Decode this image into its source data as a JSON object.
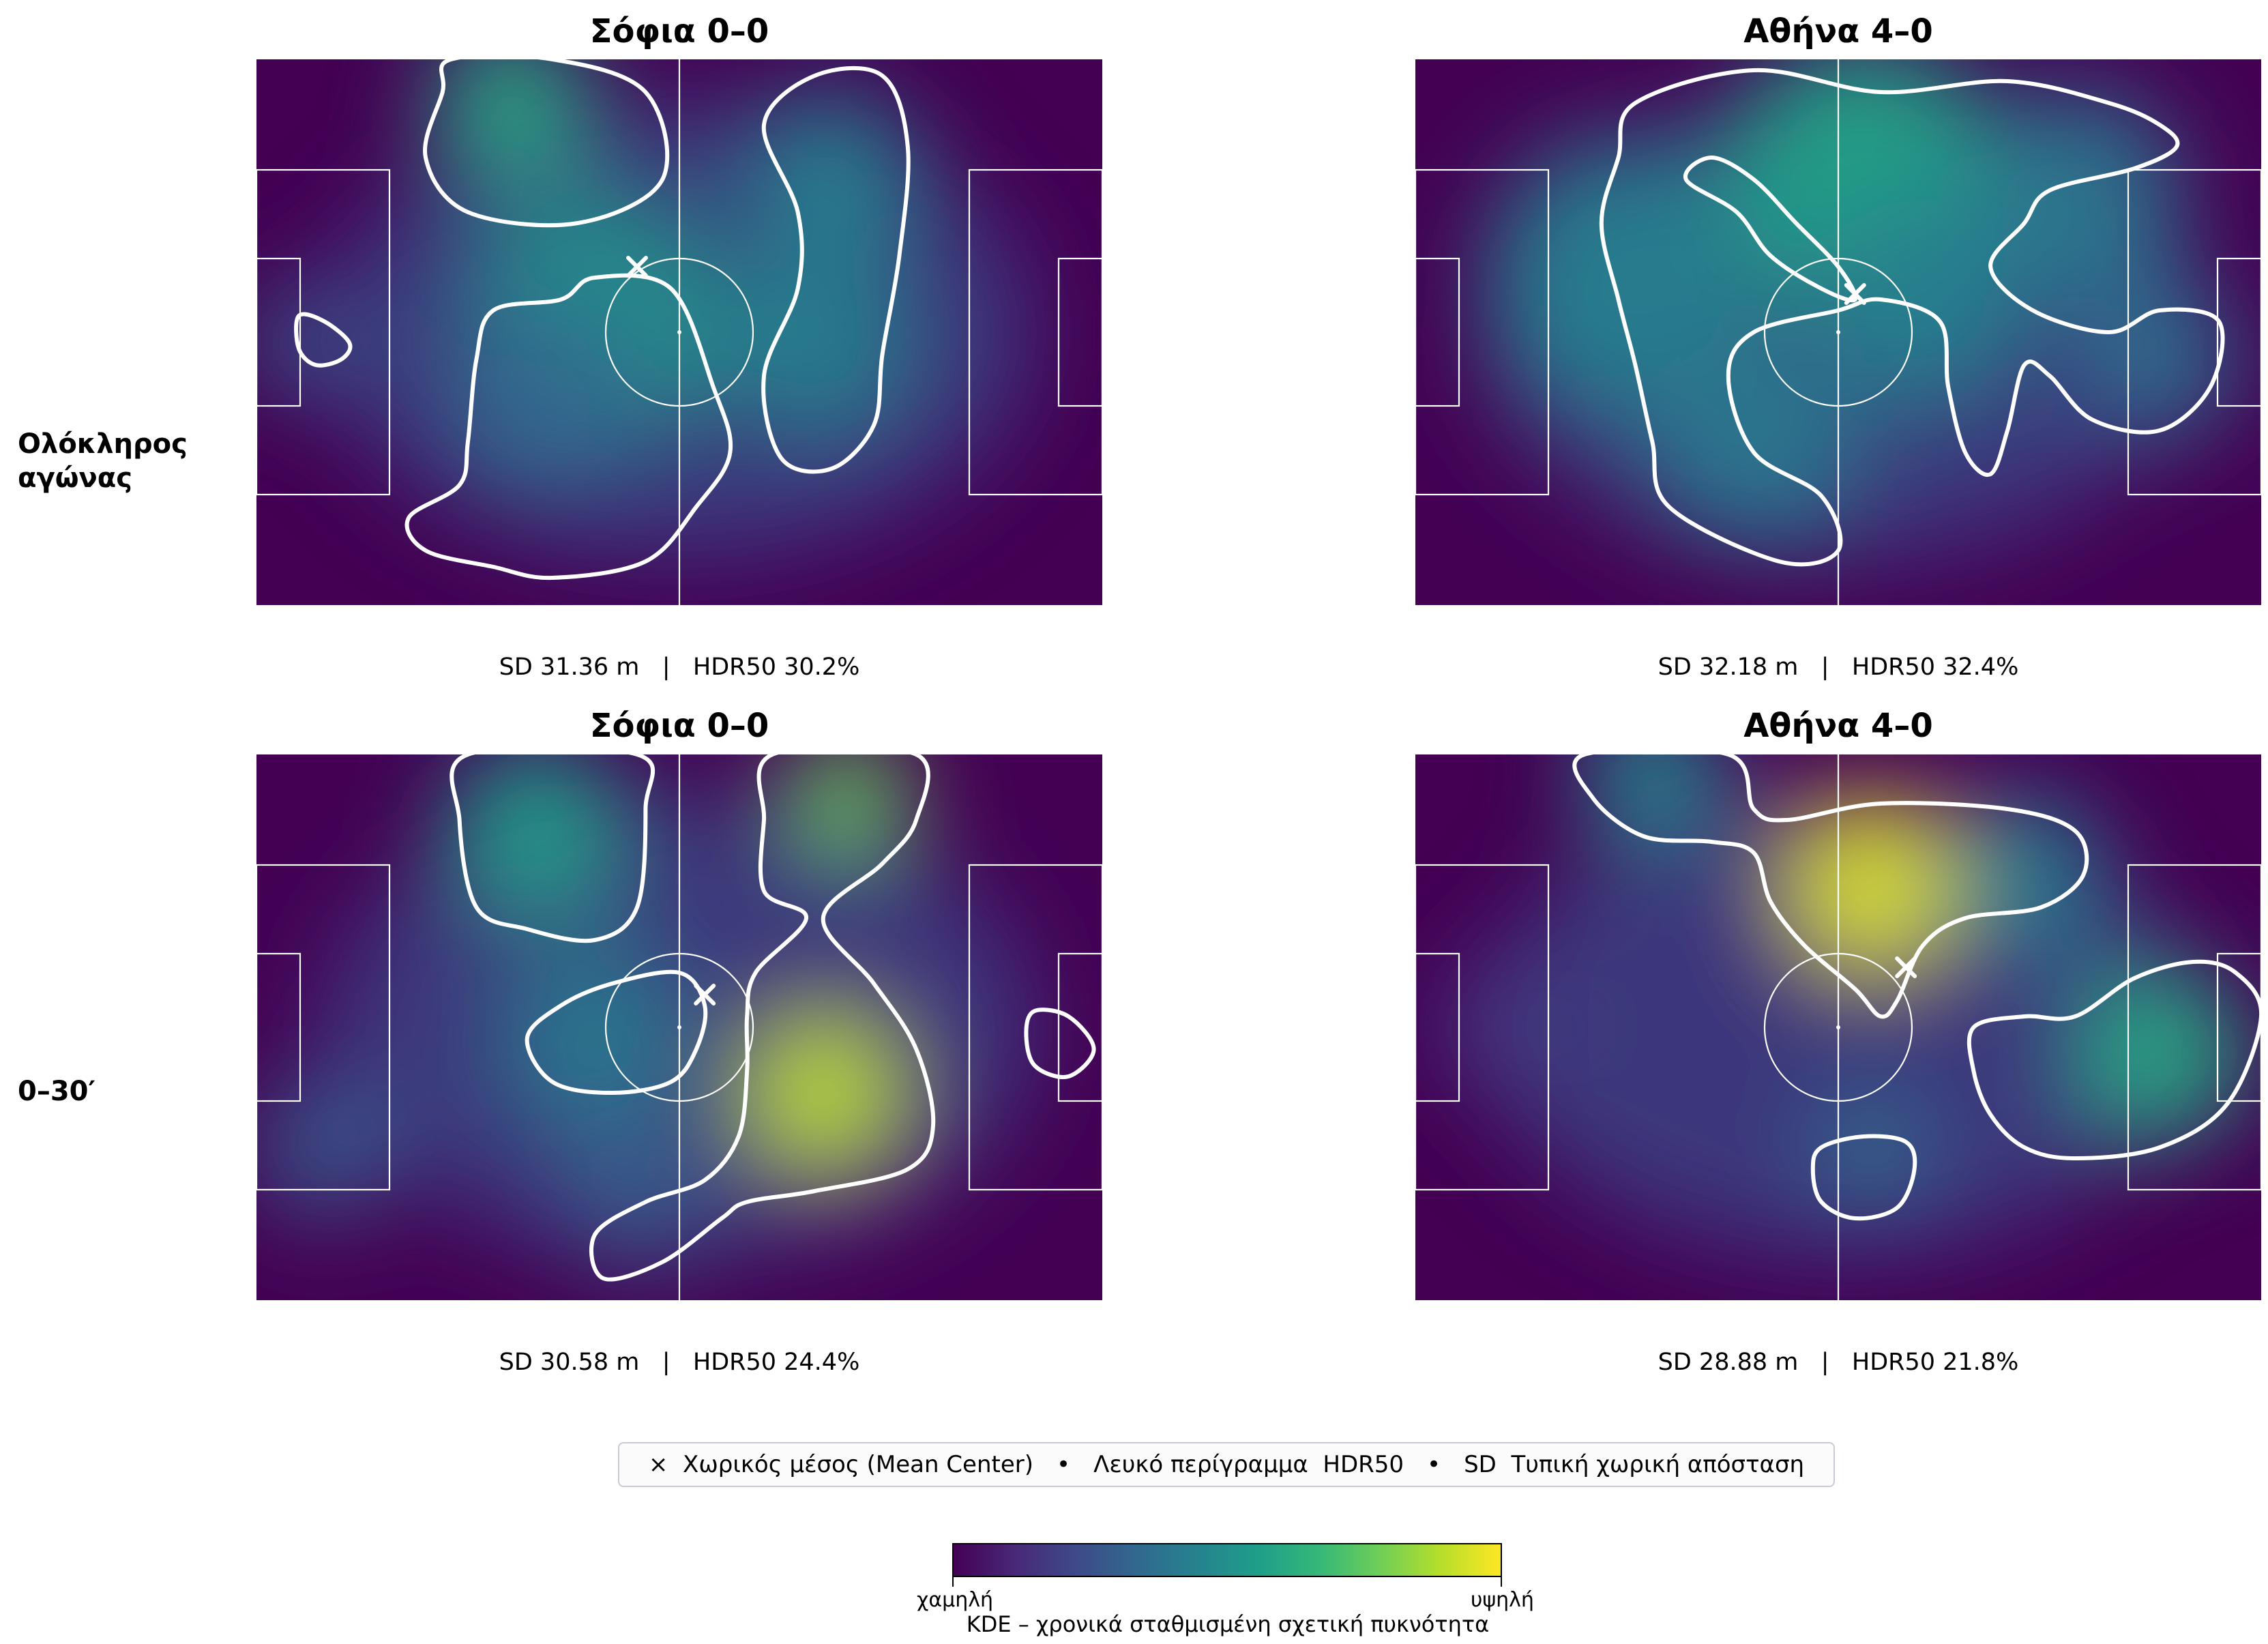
{
  "rows": [
    {
      "label": "Ολόκληρος\nαγώνας"
    },
    {
      "label": "0–30′"
    }
  ],
  "panels": [
    {
      "title": "Σόφια 0–0",
      "stats": "SD 31.36 m   |   HDR50 30.2%",
      "mean_center": [
        45,
        38
      ],
      "density_blobs": [
        [
          30,
          8,
          0.62,
          90
        ],
        [
          40,
          48,
          0.52,
          150
        ],
        [
          66,
          52,
          0.45,
          110
        ],
        [
          68,
          22,
          0.45,
          100
        ],
        [
          5,
          52,
          0.3,
          60
        ],
        [
          34,
          62,
          0.35,
          110
        ]
      ],
      "hdr50_contours": [
        [
          [
            23,
            0
          ],
          [
            35,
            0
          ],
          [
            46,
            6
          ],
          [
            48,
            22
          ],
          [
            38,
            30
          ],
          [
            25,
            28
          ],
          [
            20,
            18
          ],
          [
            22,
            6
          ]
        ],
        [
          [
            28,
            46
          ],
          [
            36,
            44
          ],
          [
            40,
            40
          ],
          [
            49,
            42
          ],
          [
            54,
            60
          ],
          [
            56,
            72
          ],
          [
            52,
            82
          ],
          [
            46,
            92
          ],
          [
            35,
            95
          ],
          [
            28,
            93
          ],
          [
            20,
            90
          ],
          [
            18,
            84
          ],
          [
            24,
            78
          ],
          [
            25,
            70
          ],
          [
            26,
            55
          ]
        ],
        [
          [
            60,
            12
          ],
          [
            66,
            3
          ],
          [
            74,
            3
          ],
          [
            77,
            16
          ],
          [
            76,
            36
          ],
          [
            74,
            54
          ],
          [
            73,
            67
          ],
          [
            68,
            75
          ],
          [
            62,
            73
          ],
          [
            60,
            58
          ],
          [
            64,
            42
          ],
          [
            64,
            28
          ]
        ],
        [
          [
            5,
            47
          ],
          [
            8,
            48
          ],
          [
            11,
            52
          ],
          [
            10,
            55
          ],
          [
            7,
            56
          ],
          [
            5,
            53
          ]
        ]
      ]
    },
    {
      "title": "Αθήνα 4–0",
      "stats": "SD 32.18 m   |   HDR50 32.4%",
      "mean_center": [
        52,
        43
      ],
      "density_blobs": [
        [
          53,
          22,
          0.6,
          160
        ],
        [
          25,
          40,
          0.45,
          160
        ],
        [
          40,
          70,
          0.42,
          120
        ],
        [
          88,
          55,
          0.38,
          90
        ],
        [
          78,
          25,
          0.42,
          120
        ],
        [
          60,
          45,
          0.45,
          120
        ]
      ],
      "hdr50_contours": [
        [
          [
            26,
            8
          ],
          [
            40,
            2
          ],
          [
            55,
            6
          ],
          [
            70,
            4
          ],
          [
            82,
            8
          ],
          [
            88,
            12
          ],
          [
            90,
            16
          ],
          [
            85,
            20
          ],
          [
            75,
            24
          ],
          [
            72,
            30
          ],
          [
            68,
            38
          ],
          [
            73,
            46
          ],
          [
            82,
            50
          ],
          [
            88,
            46
          ],
          [
            95,
            48
          ],
          [
            94,
            60
          ],
          [
            88,
            68
          ],
          [
            80,
            66
          ],
          [
            75,
            58
          ],
          [
            72,
            56
          ],
          [
            70,
            68
          ],
          [
            68,
            76
          ],
          [
            65,
            72
          ],
          [
            63,
            60
          ],
          [
            62,
            48
          ],
          [
            55,
            44
          ],
          [
            50,
            46
          ],
          [
            40,
            50
          ],
          [
            37,
            58
          ],
          [
            40,
            72
          ],
          [
            48,
            80
          ],
          [
            50,
            90
          ],
          [
            43,
            92
          ],
          [
            30,
            82
          ],
          [
            28,
            70
          ],
          [
            26,
            56
          ],
          [
            24,
            44
          ],
          [
            22,
            30
          ],
          [
            24,
            18
          ]
        ],
        [
          [
            32,
            22
          ],
          [
            35,
            18
          ],
          [
            40,
            22
          ],
          [
            45,
            30
          ],
          [
            50,
            38
          ],
          [
            52,
            44
          ],
          [
            48,
            42
          ],
          [
            42,
            36
          ],
          [
            38,
            28
          ]
        ]
      ]
    },
    {
      "title": "Σόφια 0–0",
      "stats": "SD 30.58 m   |   HDR50 24.4%",
      "mean_center": [
        53,
        44
      ],
      "density_blobs": [
        [
          33,
          14,
          0.58,
          100
        ],
        [
          67,
          62,
          0.95,
          90
        ],
        [
          70,
          8,
          0.8,
          70
        ],
        [
          40,
          52,
          0.42,
          110
        ],
        [
          45,
          80,
          0.3,
          90
        ],
        [
          8,
          72,
          0.3,
          80
        ]
      ],
      "hdr50_contours": [
        [
          [
            25,
            0
          ],
          [
            45,
            0
          ],
          [
            46,
            10
          ],
          [
            45,
            28
          ],
          [
            40,
            34
          ],
          [
            32,
            32
          ],
          [
            26,
            28
          ],
          [
            24,
            12
          ]
        ],
        [
          [
            36,
            46
          ],
          [
            42,
            42
          ],
          [
            50,
            40
          ],
          [
            53,
            46
          ],
          [
            52,
            54
          ],
          [
            49,
            60
          ],
          [
            42,
            62
          ],
          [
            35,
            60
          ],
          [
            32,
            52
          ]
        ],
        [
          [
            61,
            0
          ],
          [
            78,
            0
          ],
          [
            78,
            12
          ],
          [
            74,
            20
          ],
          [
            67,
            30
          ],
          [
            73,
            42
          ],
          [
            78,
            54
          ],
          [
            80,
            68
          ],
          [
            77,
            76
          ],
          [
            66,
            80
          ],
          [
            58,
            82
          ],
          [
            55,
            85
          ],
          [
            48,
            93
          ],
          [
            41,
            96
          ],
          [
            40,
            88
          ],
          [
            46,
            82
          ],
          [
            53,
            78
          ],
          [
            57,
            70
          ],
          [
            58,
            58
          ],
          [
            58,
            48
          ],
          [
            59,
            40
          ],
          [
            65,
            30
          ],
          [
            60,
            25
          ],
          [
            60,
            12
          ]
        ],
        [
          [
            92,
            47
          ],
          [
            96,
            48
          ],
          [
            99,
            54
          ],
          [
            96,
            59
          ],
          [
            92,
            57
          ],
          [
            91,
            51
          ]
        ]
      ]
    },
    {
      "title": "Αθήνα 4–0",
      "stats": "SD 28.88 m   |   HDR50 21.8%",
      "mean_center": [
        58,
        39
      ],
      "density_blobs": [
        [
          54,
          24,
          1.0,
          100
        ],
        [
          88,
          55,
          0.62,
          100
        ],
        [
          28,
          4,
          0.5,
          80
        ],
        [
          72,
          22,
          0.45,
          90
        ],
        [
          54,
          72,
          0.35,
          70
        ],
        [
          10,
          50,
          0.18,
          70
        ]
      ],
      "hdr50_contours": [
        [
          [
            20,
            0
          ],
          [
            37,
            0
          ],
          [
            40,
            10
          ],
          [
            44,
            12
          ],
          [
            55,
            9
          ],
          [
            70,
            10
          ],
          [
            78,
            14
          ],
          [
            79,
            22
          ],
          [
            74,
            28
          ],
          [
            65,
            30
          ],
          [
            60,
            35
          ],
          [
            57,
            45
          ],
          [
            55,
            48
          ],
          [
            52,
            43
          ],
          [
            46,
            35
          ],
          [
            42,
            27
          ],
          [
            40,
            18
          ],
          [
            35,
            16
          ],
          [
            27,
            15
          ],
          [
            21,
            8
          ]
        ],
        [
          [
            66,
            50
          ],
          [
            72,
            48
          ],
          [
            78,
            48
          ],
          [
            85,
            41
          ],
          [
            92,
            38
          ],
          [
            97,
            40
          ],
          [
            100,
            48
          ],
          [
            96,
            64
          ],
          [
            88,
            72
          ],
          [
            78,
            74
          ],
          [
            72,
            72
          ],
          [
            68,
            66
          ],
          [
            66,
            58
          ]
        ],
        [
          [
            48,
            72
          ],
          [
            53,
            70
          ],
          [
            58,
            71
          ],
          [
            59,
            76
          ],
          [
            57,
            83
          ],
          [
            52,
            85
          ],
          [
            48,
            82
          ],
          [
            47,
            76
          ]
        ]
      ]
    }
  ],
  "legend": {
    "mean_center": "×  Χωρικός μέσος (Mean Center)",
    "sep1": "•",
    "contour": "Λευκό περίγραμμα  HDR50",
    "sep2": "•",
    "sd": "SD  Τυπική χωρική απόσταση"
  },
  "colorbar": {
    "low": "χαμηλή",
    "high": "υψηλή",
    "title": "KDE – χρονικά σταθμισμένη σχετική πυκνότητα",
    "colormap": [
      "#440154",
      "#482878",
      "#3e4989",
      "#31688e",
      "#26828e",
      "#1f9e89",
      "#35b779",
      "#6ece58",
      "#b5de2b",
      "#fde725"
    ]
  },
  "chart_data": [
    {
      "type": "heatmap",
      "title": "Σόφια 0–0",
      "row": "Ολόκληρος αγώνας",
      "sd_m": 31.36,
      "hdr50_pct": 30.2,
      "mean_center": [
        45,
        38
      ]
    },
    {
      "type": "heatmap",
      "title": "Αθήνα 4–0",
      "row": "Ολόκληρος αγώνας",
      "sd_m": 32.18,
      "hdr50_pct": 32.4,
      "mean_center": [
        52,
        43
      ]
    },
    {
      "type": "heatmap",
      "title": "Σόφια 0–0",
      "row": "0–30′",
      "sd_m": 30.58,
      "hdr50_pct": 24.4,
      "mean_center": [
        53,
        44
      ]
    },
    {
      "type": "heatmap",
      "title": "Αθήνα 4–0",
      "row": "0–30′",
      "sd_m": 28.88,
      "hdr50_pct": 21.8,
      "mean_center": [
        58,
        39
      ]
    }
  ]
}
